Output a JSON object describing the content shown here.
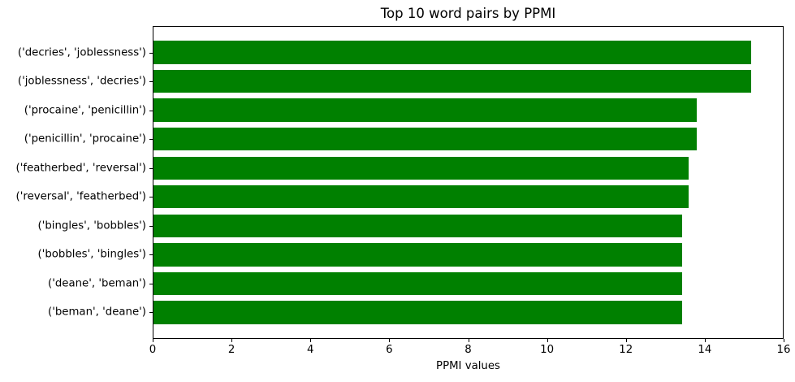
{
  "chart_data": {
    "type": "bar",
    "orientation": "horizontal",
    "title": "Top 10 word pairs by PPMI",
    "xlabel": "PPMI values",
    "ylabel": "",
    "categories": [
      "('decries', 'joblessness')",
      "('joblessness', 'decries')",
      "('procaine', 'penicillin')",
      "('penicillin', 'procaine')",
      "('featherbed', 'reversal')",
      "('reversal', 'featherbed')",
      "('bingles', 'bobbles')",
      "('bobbles', 'bingles')",
      "('deane', 'beman')",
      "('beman', 'deane')"
    ],
    "values": [
      15.2,
      15.2,
      13.82,
      13.82,
      13.61,
      13.61,
      13.45,
      13.45,
      13.43,
      13.43
    ],
    "xlim": [
      0,
      16
    ],
    "xticks": [
      0,
      2,
      4,
      6,
      8,
      10,
      12,
      14,
      16
    ],
    "bar_color": "#008000",
    "axis_color": "#000000",
    "background": "#ffffff",
    "grid": false,
    "legend": "none"
  }
}
